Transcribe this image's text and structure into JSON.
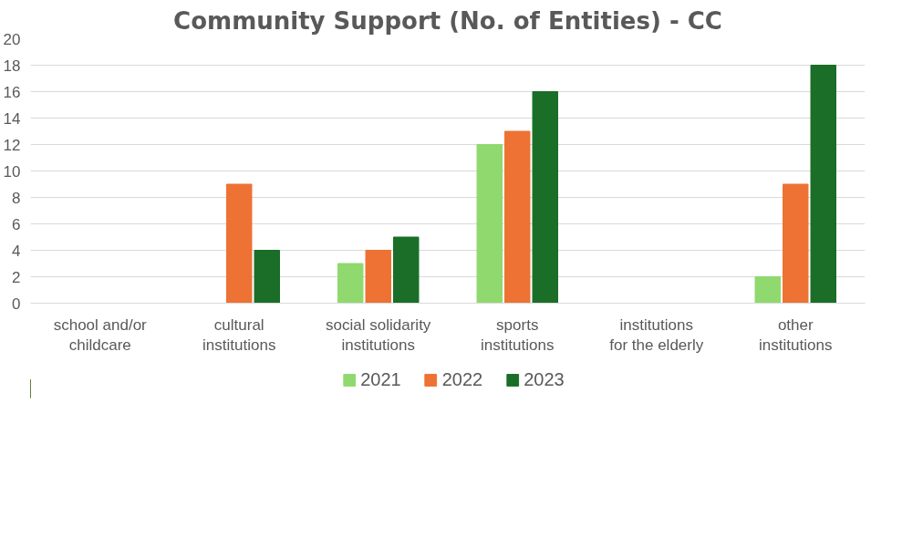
{
  "chart_data": {
    "type": "bar",
    "title": "Community Support (No. of Entities) - CC",
    "categories": [
      "school and/or childcare",
      "cultural institutions",
      "social solidarity institutions",
      "sports institutions",
      "institutions for the elderly",
      "other institutions"
    ],
    "series": [
      {
        "name": "2021",
        "color": "#8fd96f",
        "values": [
          0,
          0,
          3,
          12,
          0,
          2
        ]
      },
      {
        "name": "2022",
        "color": "#ed7233",
        "values": [
          0,
          9,
          4,
          13,
          0,
          9
        ]
      },
      {
        "name": "2023",
        "color": "#1a6e28",
        "values": [
          0,
          4,
          5,
          16,
          0,
          18
        ]
      }
    ],
    "ylim": [
      0,
      20
    ],
    "yticks": [
      0,
      2,
      4,
      6,
      8,
      10,
      12,
      14,
      16,
      18,
      20
    ],
    "grid": "y",
    "legend": "bottom"
  }
}
